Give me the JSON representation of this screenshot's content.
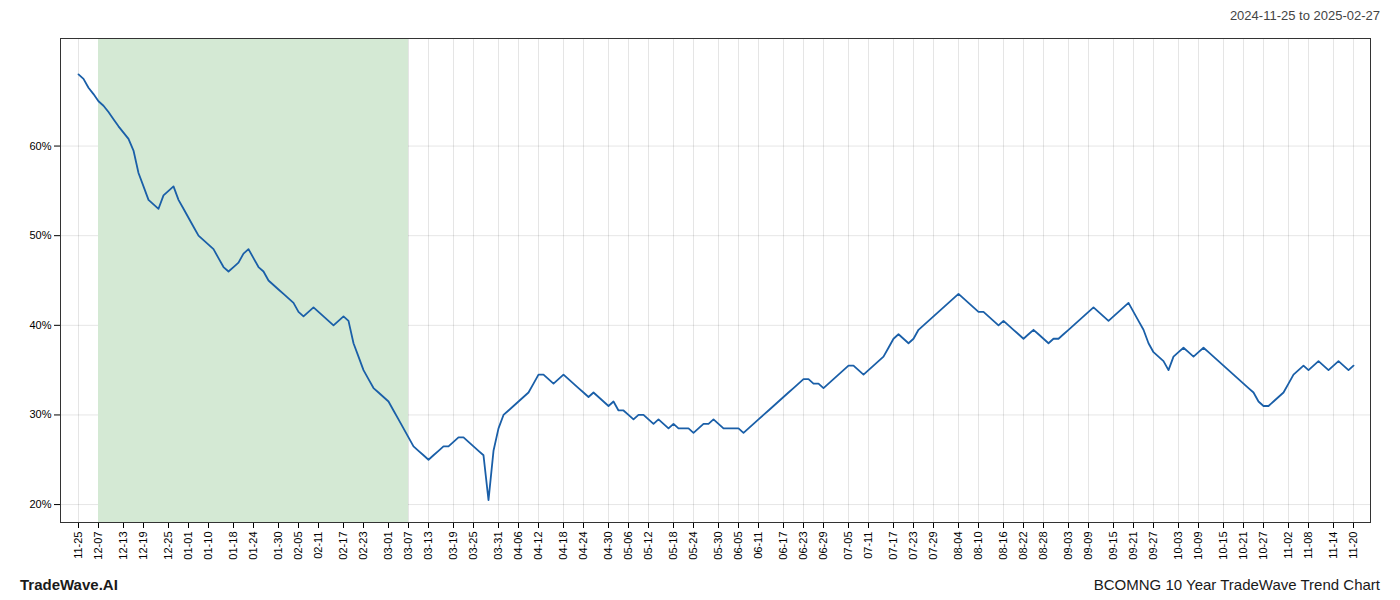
{
  "chart_data": {
    "type": "line",
    "subtitle": "2024-11-25 to 2025-02-27",
    "annotations": [
      "TradeWave.AI",
      "BCOMNG 10 Year TradeWave Trend Chart"
    ],
    "color": "#1a5fa8",
    "grid": true,
    "ylim": [
      18,
      72
    ],
    "yticks": [
      {
        "value": 20,
        "label": "20%"
      },
      {
        "value": 30,
        "label": "30%"
      },
      {
        "value": 40,
        "label": "40%"
      },
      {
        "value": 50,
        "label": "50%"
      },
      {
        "value": 60,
        "label": "60%"
      }
    ],
    "highlight": {
      "start": "12-07",
      "end": "03-07",
      "color": "#d4e9d4"
    },
    "categories": [
      "11-25",
      null,
      null,
      null,
      "12-07",
      null,
      null,
      null,
      null,
      "12-13",
      null,
      null,
      null,
      "12-19",
      null,
      null,
      null,
      null,
      "12-25",
      null,
      null,
      null,
      "01-01",
      null,
      null,
      null,
      "01-10",
      null,
      null,
      null,
      null,
      "01-18",
      null,
      null,
      null,
      "01-24",
      null,
      null,
      null,
      null,
      "01-30",
      null,
      null,
      null,
      "02-05",
      null,
      null,
      null,
      "02-11",
      null,
      null,
      null,
      null,
      "02-17",
      null,
      null,
      null,
      "02-23",
      null,
      null,
      null,
      null,
      "03-01",
      null,
      null,
      null,
      "03-07",
      null,
      null,
      null,
      "03-13",
      null,
      null,
      null,
      null,
      "03-19",
      null,
      null,
      null,
      "03-25",
      null,
      null,
      null,
      null,
      "03-31",
      null,
      null,
      null,
      "04-06",
      null,
      null,
      null,
      "04-12",
      null,
      null,
      null,
      null,
      "04-18",
      null,
      null,
      null,
      "04-24",
      null,
      null,
      null,
      null,
      "04-30",
      null,
      null,
      null,
      "05-06",
      null,
      null,
      null,
      "05-12",
      null,
      null,
      null,
      null,
      "05-18",
      null,
      null,
      null,
      "05-24",
      null,
      null,
      null,
      null,
      "05-30",
      null,
      null,
      null,
      "06-05",
      null,
      null,
      null,
      "06-11",
      null,
      null,
      null,
      null,
      "06-17",
      null,
      null,
      null,
      "06-23",
      null,
      null,
      null,
      "06-29",
      null,
      null,
      null,
      null,
      "07-05",
      null,
      null,
      null,
      "07-11",
      null,
      null,
      null,
      null,
      "07-17",
      null,
      null,
      null,
      "07-23",
      null,
      null,
      null,
      "07-29",
      null,
      null,
      null,
      null,
      "08-04",
      null,
      null,
      null,
      "08-10",
      null,
      null,
      null,
      null,
      "08-16",
      null,
      null,
      null,
      "08-22",
      null,
      null,
      null,
      "08-28",
      null,
      null,
      null,
      null,
      "09-03",
      null,
      null,
      null,
      "09-09",
      null,
      null,
      null,
      null,
      "09-15",
      null,
      null,
      null,
      "09-21",
      null,
      null,
      null,
      "09-27",
      null,
      null,
      null,
      null,
      "10-03",
      null,
      null,
      null,
      "10-09",
      null,
      null,
      null,
      null,
      "10-15",
      null,
      null,
      null,
      "10-21",
      null,
      null,
      null,
      "10-27",
      null,
      null,
      null,
      null,
      "11-02",
      null,
      null,
      null,
      "11-08",
      null,
      null,
      null,
      null,
      "11-14",
      null,
      null,
      null,
      "11-20"
    ],
    "values": [
      68.0,
      67.5,
      66.5,
      65.8,
      65.0,
      64.5,
      63.8,
      63.0,
      62.2,
      61.5,
      60.8,
      59.5,
      57.0,
      55.5,
      54.0,
      53.5,
      53.0,
      54.5,
      55.0,
      55.5,
      54.0,
      53.0,
      52.0,
      51.0,
      50.0,
      49.5,
      49.0,
      48.5,
      47.5,
      46.5,
      46.0,
      46.5,
      47.0,
      48.0,
      48.5,
      47.5,
      46.5,
      46.0,
      45.0,
      44.5,
      44.0,
      43.5,
      43.0,
      42.5,
      41.5,
      41.0,
      41.5,
      42.0,
      41.5,
      41.0,
      40.5,
      40.0,
      40.5,
      41.0,
      40.5,
      38.0,
      36.5,
      35.0,
      34.0,
      33.0,
      32.5,
      32.0,
      31.5,
      30.5,
      29.5,
      28.5,
      27.5,
      26.5,
      26.0,
      25.5,
      25.0,
      25.5,
      26.0,
      26.5,
      26.5,
      27.0,
      27.5,
      27.5,
      27.0,
      26.5,
      26.0,
      25.5,
      20.5,
      26.0,
      28.5,
      30.0,
      30.5,
      31.0,
      31.5,
      32.0,
      32.5,
      33.5,
      34.5,
      34.5,
      34.0,
      33.5,
      34.0,
      34.5,
      34.0,
      33.5,
      33.0,
      32.5,
      32.0,
      32.5,
      32.0,
      31.5,
      31.0,
      31.5,
      30.5,
      30.5,
      30.0,
      29.5,
      30.0,
      30.0,
      29.5,
      29.0,
      29.5,
      29.0,
      28.5,
      29.0,
      28.5,
      28.5,
      28.5,
      28.0,
      28.5,
      29.0,
      29.0,
      29.5,
      29.0,
      28.5,
      28.5,
      28.5,
      28.5,
      28.0,
      28.5,
      29.0,
      29.5,
      30.0,
      30.5,
      31.0,
      31.5,
      32.0,
      32.5,
      33.0,
      33.5,
      34.0,
      34.0,
      33.5,
      33.5,
      33.0,
      33.5,
      34.0,
      34.5,
      35.0,
      35.5,
      35.5,
      35.0,
      34.5,
      35.0,
      35.5,
      36.0,
      36.5,
      37.5,
      38.5,
      39.0,
      38.5,
      38.0,
      38.5,
      39.5,
      40.0,
      40.5,
      41.0,
      41.5,
      42.0,
      42.5,
      43.0,
      43.5,
      43.0,
      42.5,
      42.0,
      41.5,
      41.5,
      41.0,
      40.5,
      40.0,
      40.5,
      40.0,
      39.5,
      39.0,
      38.5,
      39.0,
      39.5,
      39.0,
      38.5,
      38.0,
      38.5,
      38.5,
      39.0,
      39.5,
      40.0,
      40.5,
      41.0,
      41.5,
      42.0,
      41.5,
      41.0,
      40.5,
      41.0,
      41.5,
      42.0,
      42.5,
      41.5,
      40.5,
      39.5,
      38.0,
      37.0,
      36.5,
      36.0,
      35.0,
      36.5,
      37.0,
      37.5,
      37.0,
      36.5,
      37.0,
      37.5,
      37.0,
      36.5,
      36.0,
      35.5,
      35.0,
      34.5,
      34.0,
      33.5,
      33.0,
      32.5,
      31.5,
      31.0,
      31.0,
      31.5,
      32.0,
      32.5,
      33.5,
      34.5,
      35.0,
      35.5,
      35.0,
      35.5,
      36.0,
      35.5,
      35.0,
      35.5,
      36.0,
      35.5,
      35.0,
      35.5
    ]
  }
}
